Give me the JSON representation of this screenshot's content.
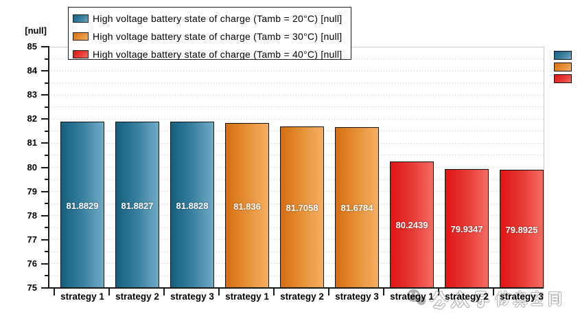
{
  "chart_data": {
    "type": "bar",
    "title": "",
    "ylabel": "[null]",
    "xlabel": "",
    "ylim": [
      75,
      85
    ],
    "y_major_tick_step": 1,
    "y_minor_tick_step": 0.5,
    "y_tick_labels": [
      "75",
      "76",
      "77",
      "78",
      "79",
      "80",
      "81",
      "82",
      "83",
      "84",
      "85"
    ],
    "grid": "horizontal dotted every 0.5, solid top and right frame",
    "legend_position": "top",
    "categories": [
      "strategy 1",
      "strategy 2",
      "strategy 3",
      "strategy 1",
      "strategy 2",
      "strategy 3",
      "strategy 1",
      "strategy 2",
      "strategy 3"
    ],
    "series": [
      {
        "name": "High voltage battery state of charge (Tamb = 20°C) [null]",
        "color": "#2e7b9c",
        "color_dark": "#145e7e",
        "color_mid": "#3a81a0",
        "color_light": "#74aac3",
        "categories": [
          "strategy 1",
          "strategy 2",
          "strategy 3"
        ],
        "values": [
          81.8829,
          81.8827,
          81.8828
        ],
        "value_labels": [
          "81.8829",
          "81.8827",
          "81.8828"
        ]
      },
      {
        "name": "High voltage battery state of charge (Tamb = 30°C) [null]",
        "color": "#e68a2e",
        "color_dark": "#d56f10",
        "color_mid": "#e69139",
        "color_light": "#f4b066",
        "categories": [
          "strategy 1",
          "strategy 2",
          "strategy 3"
        ],
        "values": [
          81.836,
          81.7058,
          81.6784
        ],
        "value_labels": [
          "81.836",
          "81.7058",
          "81.6784"
        ]
      },
      {
        "name": "High voltage battery state of charge (Tamb = 40°C) [null]",
        "color": "#e83a33",
        "color_dark": "#df1515",
        "color_mid": "#e73b38",
        "color_light": "#f26d61",
        "categories": [
          "strategy 1",
          "strategy 2",
          "strategy 3"
        ],
        "values": [
          80.2439,
          79.9347,
          79.8925
        ],
        "value_labels": [
          "80.2439",
          "79.9347",
          "79.8925"
        ]
      }
    ]
  },
  "watermark": {
    "icon": "wechat-emoji-icon",
    "text": "公众号 仿真空间",
    "group1": "公众号",
    "group2": "仿真空间",
    "color": "#a9a9a9"
  }
}
